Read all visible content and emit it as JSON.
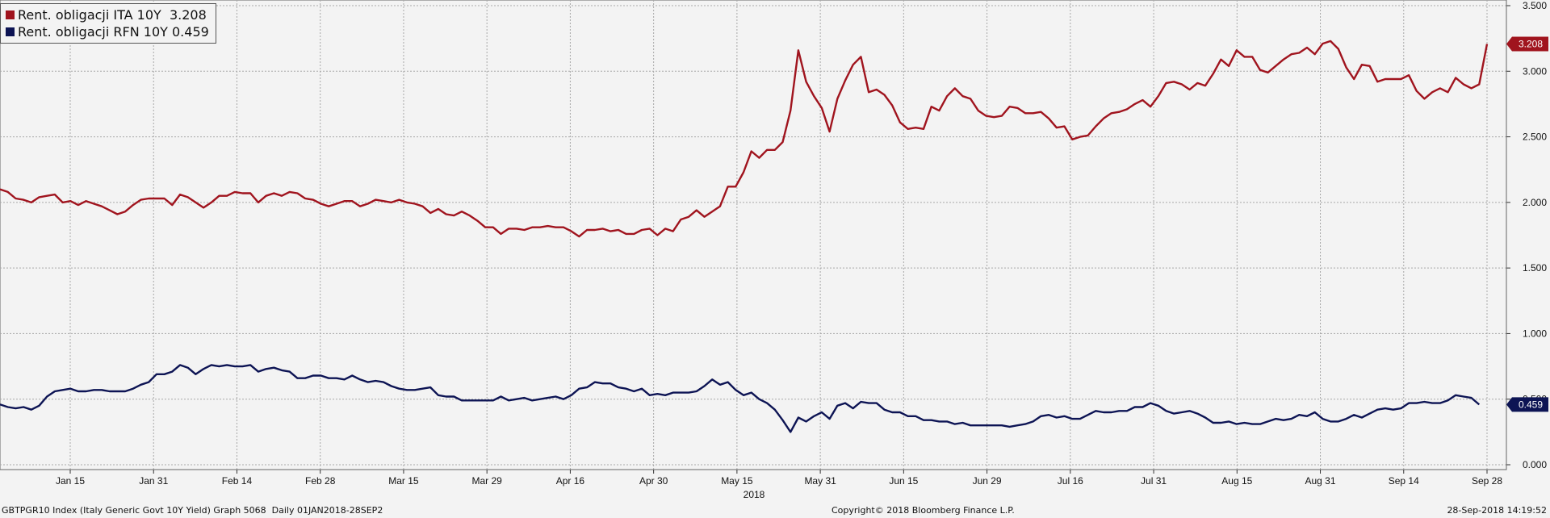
{
  "legend": {
    "items": [
      {
        "label": "Rent. obligacji ITA 10Y  3.208",
        "color": "#a0141e"
      },
      {
        "label": "Rent. obligacji RFN 10Y 0.459",
        "color": "#0d1454"
      }
    ]
  },
  "footer": {
    "left": "GBTPGR10 Index (Italy Generic Govt 10Y Yield) Graph 5068  Daily 01JAN2018-28SEP2",
    "center": "Copyright© 2018 Bloomberg Finance L.P.",
    "right": "28-Sep-2018 14:19:52"
  },
  "chart_data": {
    "type": "line",
    "x_tick_labels": [
      "Jan 15",
      "Jan 31",
      "Feb 14",
      "Feb 28",
      "Mar 15",
      "Mar 29",
      "Apr 16",
      "Apr 30",
      "May 15",
      "May 31",
      "Jun 15",
      "Jun 29",
      "Jul 16",
      "Jul 31",
      "Aug 15",
      "Aug 31",
      "Sep 14",
      "Sep 28"
    ],
    "x_year_label": "2018",
    "y_tick_labels": [
      "0.000",
      "0.500",
      "1.000",
      "1.500",
      "2.000",
      "2.500",
      "3.000",
      "3.500"
    ],
    "ylim": [
      0,
      3.5
    ],
    "grid": true,
    "legend_position": "top-left",
    "series": [
      {
        "name": "Rent. obligacji ITA 10Y",
        "color": "#a0141e",
        "last_value_label": "3.208",
        "values": [
          2.1,
          2.08,
          2.03,
          2.02,
          2.0,
          2.04,
          2.05,
          2.06,
          2.0,
          2.01,
          1.98,
          2.01,
          1.99,
          1.97,
          1.94,
          1.91,
          1.93,
          1.98,
          2.02,
          2.03,
          2.03,
          2.03,
          1.98,
          2.06,
          2.04,
          2.0,
          1.96,
          2.0,
          2.05,
          2.05,
          2.08,
          2.07,
          2.07,
          2.0,
          2.05,
          2.07,
          2.05,
          2.08,
          2.07,
          2.03,
          2.02,
          1.99,
          1.97,
          1.99,
          2.01,
          2.01,
          1.97,
          1.99,
          2.02,
          2.01,
          2.0,
          2.02,
          2.0,
          1.99,
          1.97,
          1.92,
          1.95,
          1.91,
          1.9,
          1.93,
          1.9,
          1.86,
          1.81,
          1.81,
          1.76,
          1.8,
          1.8,
          1.79,
          1.81,
          1.81,
          1.82,
          1.81,
          1.81,
          1.78,
          1.74,
          1.79,
          1.79,
          1.8,
          1.78,
          1.79,
          1.76,
          1.76,
          1.79,
          1.8,
          1.75,
          1.8,
          1.78,
          1.87,
          1.89,
          1.94,
          1.89,
          1.93,
          1.97,
          2.12,
          2.12,
          2.23,
          2.39,
          2.34,
          2.4,
          2.4,
          2.46,
          2.7,
          3.16,
          2.92,
          2.81,
          2.72,
          2.54,
          2.79,
          2.93,
          3.05,
          3.11,
          2.84,
          2.86,
          2.82,
          2.74,
          2.61,
          2.56,
          2.57,
          2.56,
          2.73,
          2.7,
          2.81,
          2.87,
          2.81,
          2.79,
          2.7,
          2.66,
          2.65,
          2.66,
          2.73,
          2.72,
          2.68,
          2.68,
          2.69,
          2.64,
          2.57,
          2.58,
          2.48,
          2.5,
          2.51,
          2.58,
          2.64,
          2.68,
          2.69,
          2.71,
          2.75,
          2.78,
          2.73,
          2.81,
          2.91,
          2.92,
          2.9,
          2.86,
          2.91,
          2.89,
          2.98,
          3.09,
          3.04,
          3.16,
          3.11,
          3.11,
          3.01,
          2.99,
          3.04,
          3.09,
          3.13,
          3.14,
          3.18,
          3.13,
          3.21,
          3.23,
          3.17,
          3.03,
          2.94,
          3.05,
          3.04,
          2.92,
          2.94,
          2.94,
          2.94,
          2.97,
          2.85,
          2.79,
          2.84,
          2.87,
          2.84,
          2.95,
          2.9,
          2.87,
          2.9,
          3.208
        ]
      },
      {
        "name": "Rent. obligacji RFN 10Y",
        "color": "#0d1454",
        "last_value_label": "0.459",
        "values": [
          0.46,
          0.44,
          0.43,
          0.44,
          0.42,
          0.45,
          0.52,
          0.56,
          0.57,
          0.58,
          0.56,
          0.56,
          0.57,
          0.57,
          0.56,
          0.56,
          0.56,
          0.58,
          0.61,
          0.63,
          0.69,
          0.69,
          0.71,
          0.76,
          0.74,
          0.69,
          0.73,
          0.76,
          0.75,
          0.76,
          0.75,
          0.75,
          0.76,
          0.71,
          0.73,
          0.74,
          0.72,
          0.71,
          0.66,
          0.66,
          0.68,
          0.68,
          0.66,
          0.66,
          0.65,
          0.68,
          0.65,
          0.63,
          0.64,
          0.63,
          0.6,
          0.58,
          0.57,
          0.57,
          0.58,
          0.59,
          0.53,
          0.52,
          0.52,
          0.49,
          0.49,
          0.49,
          0.49,
          0.49,
          0.52,
          0.49,
          0.5,
          0.51,
          0.49,
          0.5,
          0.51,
          0.52,
          0.5,
          0.53,
          0.58,
          0.59,
          0.63,
          0.62,
          0.62,
          0.59,
          0.58,
          0.56,
          0.58,
          0.53,
          0.54,
          0.53,
          0.55,
          0.55,
          0.55,
          0.56,
          0.6,
          0.65,
          0.61,
          0.63,
          0.57,
          0.53,
          0.55,
          0.5,
          0.47,
          0.42,
          0.34,
          0.25,
          0.36,
          0.33,
          0.37,
          0.4,
          0.35,
          0.45,
          0.47,
          0.43,
          0.48,
          0.47,
          0.47,
          0.42,
          0.4,
          0.4,
          0.37,
          0.37,
          0.34,
          0.34,
          0.33,
          0.33,
          0.31,
          0.32,
          0.3,
          0.3,
          0.3,
          0.3,
          0.3,
          0.29,
          0.3,
          0.31,
          0.33,
          0.37,
          0.38,
          0.36,
          0.37,
          0.35,
          0.35,
          0.38,
          0.41,
          0.4,
          0.4,
          0.41,
          0.41,
          0.44,
          0.44,
          0.47,
          0.45,
          0.41,
          0.39,
          0.4,
          0.41,
          0.39,
          0.36,
          0.32,
          0.32,
          0.33,
          0.31,
          0.32,
          0.31,
          0.31,
          0.33,
          0.35,
          0.34,
          0.35,
          0.38,
          0.37,
          0.4,
          0.35,
          0.33,
          0.33,
          0.35,
          0.38,
          0.36,
          0.39,
          0.42,
          0.43,
          0.42,
          0.43,
          0.47,
          0.47,
          0.48,
          0.47,
          0.47,
          0.49,
          0.53,
          0.52,
          0.51,
          0.459
        ]
      }
    ]
  }
}
